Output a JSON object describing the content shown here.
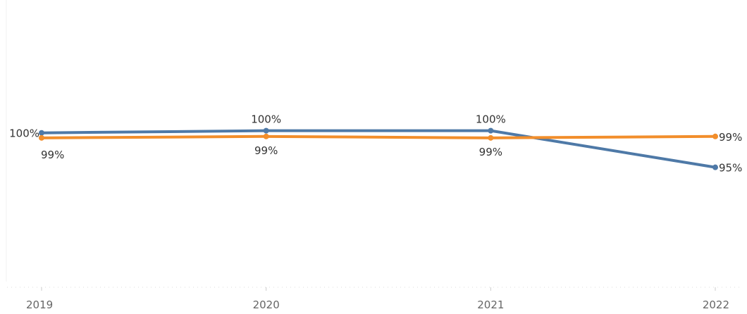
{
  "chart_data": {
    "type": "line",
    "x": [
      "2019",
      "2020",
      "2021",
      "2022"
    ],
    "series": [
      {
        "color": "#4e79a7",
        "values": [
          0.995,
          0.998,
          0.998,
          0.947
        ],
        "labels": [
          "100%",
          "100%",
          "100%",
          "95%"
        ]
      },
      {
        "color": "#f28e2b",
        "values": [
          0.988,
          0.99,
          0.988,
          0.99
        ],
        "labels": [
          "99%",
          "99%",
          "99%",
          "99%"
        ]
      }
    ],
    "xlabel": "",
    "ylabel": "",
    "ylim": [
      0.78,
      1.18
    ],
    "grid": false,
    "legend": "none"
  }
}
